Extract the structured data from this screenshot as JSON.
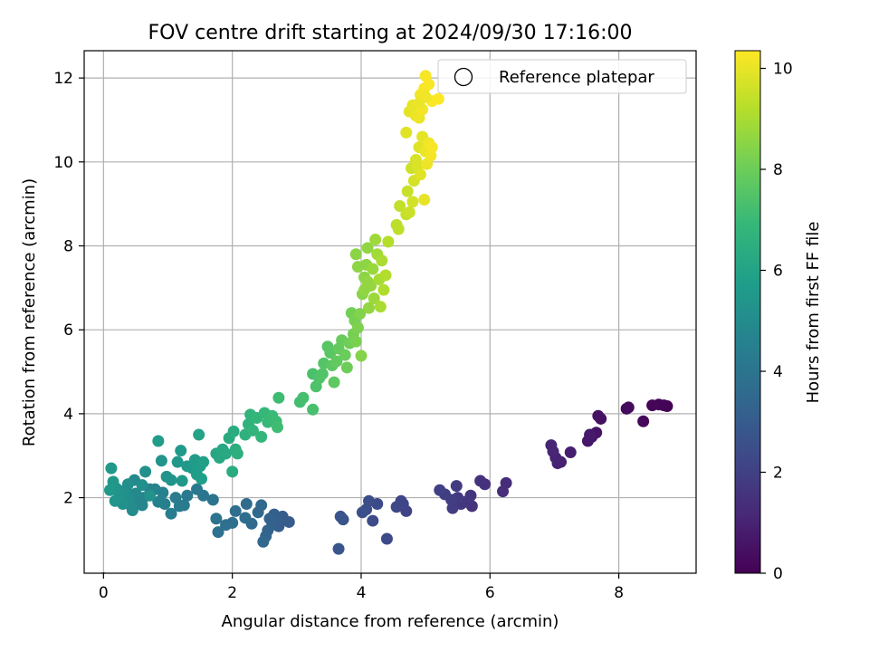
{
  "chart_data": {
    "type": "scatter",
    "title": "FOV centre drift starting at 2024/09/30 17:16:00",
    "xlabel": "Angular distance from reference (arcmin)",
    "ylabel": "Rotation from reference (arcmin)",
    "xlim": [
      -0.3,
      9.2
    ],
    "ylim": [
      0.2,
      12.65
    ],
    "xticks": [
      0,
      2,
      4,
      6,
      8
    ],
    "yticks": [
      2,
      4,
      6,
      8,
      10,
      12
    ],
    "grid": true,
    "legend": {
      "position": "top-right",
      "entries": [
        "Reference platepar"
      ]
    },
    "reference_point": {
      "x": 0.0,
      "y": 0.0
    },
    "colorbar": {
      "label": "Hours from first FF file",
      "min": 0,
      "max": 10.35,
      "ticks": [
        0,
        2,
        4,
        6,
        8,
        10
      ],
      "colormap": [
        "#440154",
        "#482878",
        "#3e4989",
        "#31688e",
        "#26828e",
        "#1f9e89",
        "#35b779",
        "#6ece58",
        "#b5de2b",
        "#fde725"
      ]
    },
    "series": [
      {
        "points": [
          [
            8.75,
            4.18,
            0.0
          ],
          [
            8.7,
            4.2,
            0.05
          ],
          [
            8.62,
            4.22,
            0.1
          ],
          [
            8.52,
            4.2,
            0.15
          ],
          [
            8.38,
            3.82,
            0.2
          ],
          [
            8.12,
            4.12,
            0.25
          ],
          [
            8.15,
            4.15,
            0.3
          ],
          [
            7.72,
            3.88,
            0.45
          ],
          [
            7.68,
            3.95,
            0.5
          ],
          [
            7.65,
            3.55,
            0.55
          ],
          [
            7.58,
            3.45,
            0.6
          ],
          [
            7.52,
            3.35,
            0.65
          ],
          [
            7.55,
            3.5,
            0.7
          ],
          [
            7.25,
            3.08,
            0.85
          ],
          [
            7.1,
            2.85,
            0.9
          ],
          [
            7.05,
            2.82,
            0.95
          ],
          [
            7.02,
            2.95,
            1.0
          ],
          [
            6.98,
            3.1,
            1.05
          ],
          [
            6.95,
            3.25,
            1.1
          ],
          [
            6.25,
            2.35,
            1.3
          ],
          [
            6.2,
            2.15,
            1.35
          ],
          [
            5.92,
            2.32,
            1.45
          ],
          [
            5.85,
            2.4,
            1.5
          ],
          [
            5.72,
            1.8,
            1.55
          ],
          [
            5.7,
            2.05,
            1.6
          ],
          [
            5.62,
            1.9,
            1.65
          ],
          [
            5.55,
            1.85,
            1.7
          ],
          [
            5.5,
            2.0,
            1.75
          ],
          [
            5.48,
            2.28,
            1.8
          ],
          [
            5.42,
            1.75,
            1.85
          ],
          [
            5.4,
            1.95,
            1.9
          ],
          [
            5.3,
            2.08,
            1.95
          ],
          [
            5.22,
            2.18,
            2.0
          ],
          [
            4.7,
            1.68,
            2.1
          ],
          [
            4.65,
            1.85,
            2.15
          ],
          [
            4.62,
            1.92,
            2.2
          ],
          [
            4.55,
            1.78,
            2.25
          ],
          [
            4.4,
            1.02,
            2.3
          ],
          [
            4.25,
            1.85,
            2.35
          ],
          [
            4.18,
            1.45,
            2.4
          ],
          [
            4.12,
            1.92,
            2.45
          ],
          [
            4.08,
            1.72,
            2.5
          ],
          [
            4.02,
            1.65,
            2.55
          ],
          [
            3.72,
            1.48,
            2.7
          ],
          [
            3.68,
            1.55,
            2.75
          ],
          [
            3.65,
            0.78,
            2.8
          ],
          [
            2.88,
            1.42,
            2.95
          ],
          [
            2.78,
            1.55,
            3.0
          ],
          [
            2.72,
            1.32,
            3.05
          ],
          [
            2.68,
            1.48,
            3.1
          ],
          [
            2.65,
            1.6,
            3.15
          ],
          [
            2.62,
            1.35,
            3.2
          ],
          [
            2.58,
            1.5,
            3.25
          ],
          [
            2.55,
            1.22,
            3.3
          ],
          [
            2.52,
            1.08,
            3.35
          ],
          [
            2.48,
            0.95,
            3.4
          ],
          [
            2.45,
            1.82,
            3.45
          ],
          [
            2.4,
            1.65,
            3.5
          ],
          [
            2.3,
            1.38,
            3.55
          ],
          [
            2.22,
            1.85,
            3.6
          ],
          [
            2.2,
            1.52,
            3.65
          ],
          [
            2.05,
            1.68,
            3.7
          ],
          [
            2.0,
            1.4,
            3.75
          ],
          [
            1.9,
            1.35,
            3.8
          ],
          [
            1.78,
            1.18,
            3.85
          ],
          [
            1.75,
            1.5,
            3.9
          ],
          [
            1.7,
            1.95,
            3.95
          ],
          [
            1.55,
            2.05,
            4.05
          ],
          [
            1.45,
            2.2,
            4.15
          ],
          [
            1.3,
            2.05,
            4.2
          ],
          [
            1.25,
            1.82,
            4.25
          ],
          [
            1.18,
            1.8,
            4.3
          ],
          [
            1.12,
            2.0,
            4.35
          ],
          [
            1.05,
            1.62,
            4.4
          ],
          [
            0.95,
            1.85,
            4.45
          ],
          [
            0.92,
            2.12,
            4.5
          ],
          [
            0.85,
            1.9,
            4.55
          ],
          [
            0.8,
            2.2,
            4.6
          ],
          [
            0.72,
            2.2,
            4.65
          ],
          [
            0.62,
            2.0,
            4.7
          ],
          [
            0.6,
            1.82,
            4.75
          ],
          [
            0.55,
            1.95,
            4.8
          ],
          [
            0.5,
            2.1,
            4.85
          ],
          [
            0.48,
            2.42,
            4.9
          ],
          [
            0.45,
            1.7,
            4.95
          ],
          [
            0.42,
            1.82,
            5.0
          ],
          [
            0.4,
            2.0,
            5.05
          ],
          [
            0.38,
            2.32,
            5.1
          ],
          [
            0.35,
            2.2,
            5.15
          ],
          [
            0.3,
            1.85,
            5.2
          ],
          [
            0.28,
            2.1,
            5.25
          ],
          [
            0.25,
            2.05,
            5.3
          ],
          [
            0.2,
            2.22,
            5.35
          ],
          [
            0.18,
            1.92,
            5.4
          ],
          [
            0.15,
            2.38,
            5.45
          ],
          [
            0.12,
            2.7,
            5.5
          ],
          [
            0.1,
            2.18,
            5.55
          ],
          [
            0.6,
            2.3,
            5.15
          ],
          [
            0.65,
            2.62,
            5.2
          ],
          [
            0.72,
            2.05,
            5.25
          ],
          [
            0.9,
            2.88,
            5.35
          ],
          [
            0.98,
            2.5,
            5.3
          ],
          [
            1.05,
            2.42,
            5.4
          ],
          [
            1.15,
            2.85,
            5.45
          ],
          [
            1.22,
            2.4,
            5.5
          ],
          [
            1.3,
            2.75,
            5.55
          ],
          [
            1.38,
            2.7,
            5.6
          ],
          [
            1.42,
            2.9,
            5.65
          ],
          [
            1.45,
            2.55,
            5.7
          ],
          [
            1.5,
            2.75,
            5.75
          ],
          [
            1.52,
            2.45,
            5.8
          ],
          [
            1.55,
            2.85,
            5.85
          ],
          [
            1.2,
            3.12,
            5.6
          ],
          [
            0.85,
            3.35,
            5.65
          ],
          [
            1.48,
            3.5,
            6.0
          ],
          [
            1.75,
            3.05,
            6.1
          ],
          [
            1.8,
            2.95,
            6.15
          ],
          [
            1.85,
            3.15,
            6.2
          ],
          [
            1.9,
            3.05,
            6.25
          ],
          [
            1.95,
            3.42,
            6.3
          ],
          [
            2.0,
            2.62,
            6.35
          ],
          [
            2.02,
            3.58,
            6.4
          ],
          [
            2.05,
            3.15,
            6.45
          ],
          [
            2.08,
            3.05,
            6.5
          ],
          [
            2.2,
            3.5,
            6.6
          ],
          [
            2.25,
            3.75,
            6.65
          ],
          [
            2.28,
            3.98,
            6.7
          ],
          [
            2.32,
            3.6,
            6.75
          ],
          [
            2.38,
            3.9,
            6.8
          ],
          [
            2.45,
            3.45,
            6.85
          ],
          [
            2.5,
            4.02,
            6.9
          ],
          [
            2.55,
            3.8,
            6.95
          ],
          [
            2.62,
            3.95,
            7.0
          ],
          [
            2.68,
            3.82,
            7.05
          ],
          [
            2.72,
            4.38,
            7.1
          ],
          [
            2.7,
            3.68,
            7.12
          ],
          [
            3.05,
            4.28,
            7.2
          ],
          [
            3.1,
            4.38,
            7.25
          ],
          [
            3.25,
            4.1,
            7.3
          ],
          [
            3.25,
            4.95,
            7.35
          ],
          [
            3.3,
            4.65,
            7.4
          ],
          [
            3.35,
            4.85,
            7.45
          ],
          [
            3.4,
            4.95,
            7.5
          ],
          [
            3.42,
            5.2,
            7.55
          ],
          [
            3.48,
            5.6,
            7.6
          ],
          [
            3.52,
            5.45,
            7.65
          ],
          [
            3.55,
            5.15,
            7.7
          ],
          [
            3.58,
            4.75,
            7.75
          ],
          [
            3.62,
            5.25,
            7.8
          ],
          [
            3.65,
            5.55,
            7.85
          ],
          [
            3.7,
            5.75,
            7.9
          ],
          [
            3.75,
            5.4,
            7.95
          ],
          [
            3.78,
            5.1,
            8.0
          ],
          [
            3.82,
            5.68,
            8.05
          ],
          [
            3.85,
            6.4,
            8.1
          ],
          [
            3.88,
            5.9,
            8.15
          ],
          [
            3.9,
            6.22,
            8.2
          ],
          [
            3.92,
            5.72,
            8.25
          ],
          [
            3.95,
            6.05,
            8.3
          ],
          [
            3.98,
            6.38,
            8.35
          ],
          [
            4.0,
            5.38,
            8.4
          ],
          [
            4.02,
            6.85,
            8.45
          ],
          [
            4.05,
            7.25,
            8.5
          ],
          [
            4.08,
            7.55,
            8.55
          ],
          [
            4.1,
            7.95,
            8.6
          ],
          [
            4.12,
            6.52,
            8.65
          ],
          [
            4.15,
            7.05,
            8.7
          ],
          [
            4.18,
            7.45,
            8.75
          ],
          [
            4.2,
            6.75,
            8.8
          ],
          [
            4.22,
            8.15,
            8.85
          ],
          [
            4.25,
            7.8,
            8.9
          ],
          [
            4.28,
            7.2,
            8.95
          ],
          [
            4.3,
            6.55,
            9.0
          ],
          [
            4.32,
            7.65,
            9.05
          ],
          [
            4.35,
            6.95,
            9.1
          ],
          [
            4.38,
            7.3,
            9.15
          ],
          [
            4.42,
            8.1,
            9.2
          ],
          [
            3.92,
            7.8,
            8.5
          ],
          [
            3.95,
            7.5,
            8.55
          ],
          [
            4.05,
            6.95,
            8.6
          ],
          [
            4.1,
            7.15,
            8.65
          ],
          [
            4.55,
            8.5,
            9.3
          ],
          [
            4.58,
            8.4,
            9.35
          ],
          [
            4.6,
            8.95,
            9.4
          ],
          [
            4.7,
            8.75,
            9.45
          ],
          [
            4.72,
            9.3,
            9.5
          ],
          [
            4.75,
            8.8,
            9.55
          ],
          [
            4.78,
            9.85,
            9.6
          ],
          [
            4.8,
            9.05,
            9.65
          ],
          [
            4.82,
            9.55,
            9.7
          ],
          [
            4.85,
            10.05,
            9.75
          ],
          [
            4.88,
            9.9,
            9.8
          ],
          [
            4.9,
            10.35,
            9.85
          ],
          [
            4.92,
            9.7,
            9.9
          ],
          [
            4.95,
            10.6,
            9.95
          ],
          [
            4.98,
            9.1,
            10.0
          ],
          [
            5.0,
            10.25,
            10.05
          ],
          [
            5.02,
            9.95,
            10.1
          ],
          [
            5.05,
            10.45,
            10.15
          ],
          [
            5.08,
            10.15,
            10.2
          ],
          [
            5.1,
            10.35,
            10.25
          ],
          [
            4.7,
            10.7,
            9.9
          ],
          [
            4.75,
            11.2,
            9.95
          ],
          [
            4.8,
            11.35,
            10.0
          ],
          [
            4.85,
            11.1,
            10.05
          ],
          [
            4.9,
            11.05,
            10.1
          ],
          [
            4.92,
            11.6,
            10.15
          ],
          [
            4.95,
            11.25,
            10.2
          ],
          [
            4.98,
            11.75,
            10.22
          ],
          [
            5.0,
            12.05,
            10.25
          ],
          [
            5.05,
            11.85,
            10.28
          ],
          [
            5.1,
            11.45,
            10.3
          ],
          [
            5.2,
            11.5,
            10.32
          ],
          [
            4.9,
            11.4,
            10.05
          ],
          [
            5.0,
            11.55,
            10.15
          ]
        ]
      }
    ]
  }
}
